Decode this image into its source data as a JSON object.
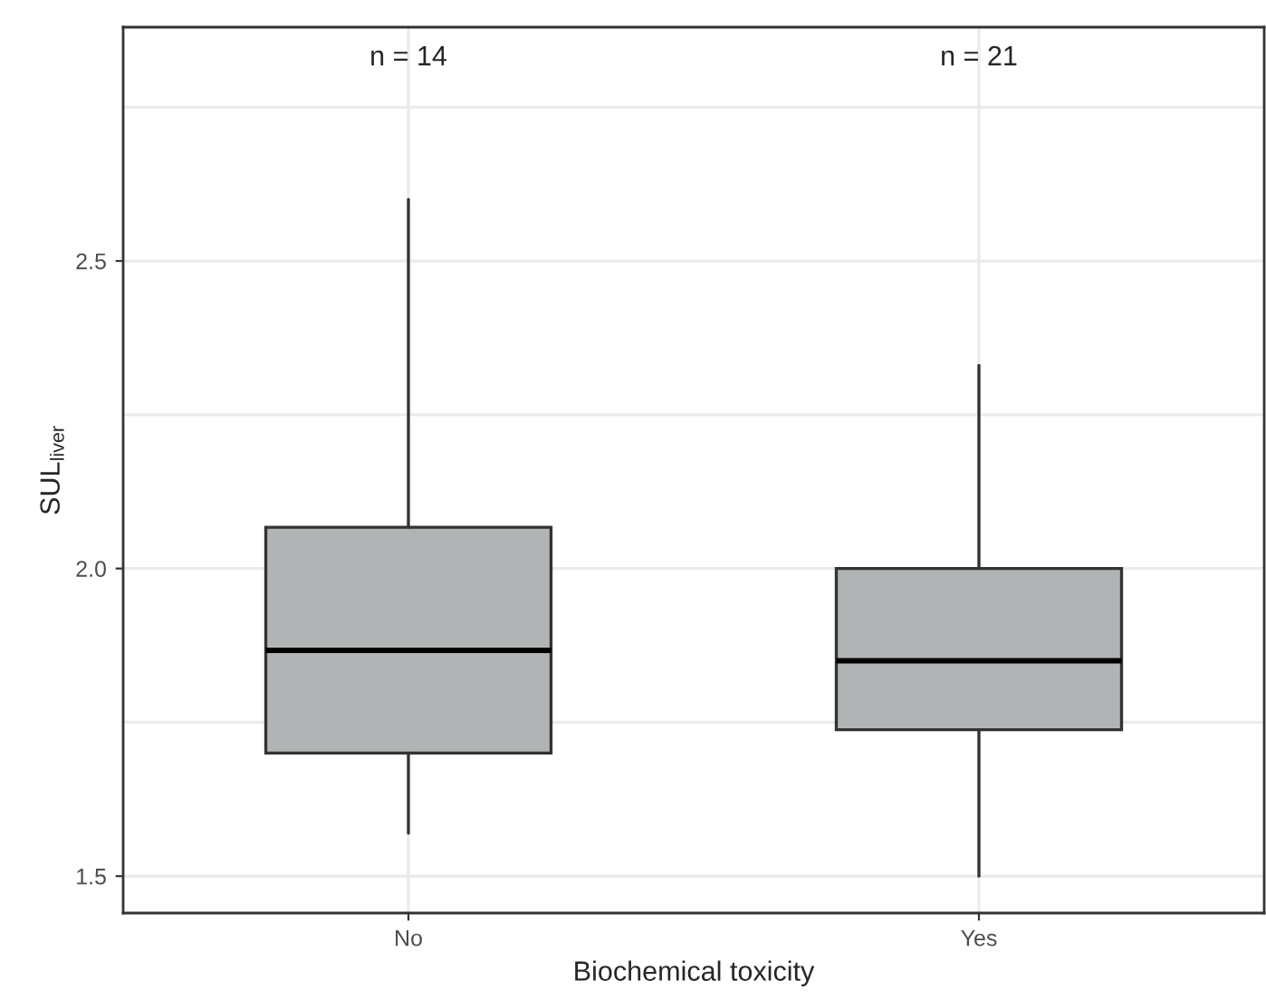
{
  "chart_data": {
    "type": "box",
    "xlabel": "Biochemical toxicity",
    "ylabel": "SUL$_{liver}$",
    "categories": [
      "No",
      "Yes"
    ],
    "boxes": [
      {
        "low": 1.57,
        "q1": 1.7,
        "median": 1.867,
        "q3": 2.067,
        "high": 2.6
      },
      {
        "low": 1.5,
        "q1": 1.738,
        "median": 1.85,
        "q3": 2.0,
        "high": 2.33
      }
    ],
    "color": "#b1b4b4",
    "ylim": [
      1.44,
      2.88
    ],
    "yticks": [
      1.5,
      {
        "value": 1.75,
        "label": null
      },
      {
        "value": 2,
        "label": "2.0"
      },
      {
        "value": 2.25,
        "label": null
      },
      2.5,
      {
        "value": 2.75,
        "label": null
      }
    ],
    "grid": true,
    "annotations": [
      "n = 14",
      "n = 21"
    ]
  }
}
